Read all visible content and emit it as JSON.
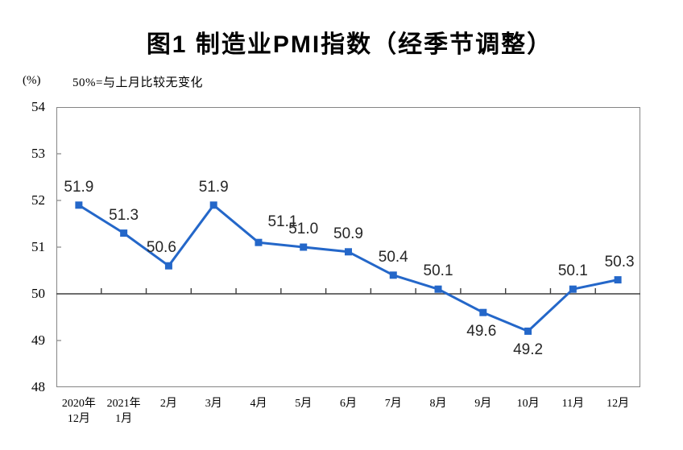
{
  "page": {
    "background": "#ffffff"
  },
  "colors": {
    "line": "#2467C9",
    "marker": "#2467C9",
    "frame": "#858585",
    "reference_line": "#3f3f3f",
    "axis_text": "#000000",
    "data_label_text": "#262626"
  },
  "chart_data": {
    "type": "line",
    "title": "图1 制造业PMI指数（经季节调整）",
    "unit_label": "(%)",
    "note": "50%=与上月比较无变化",
    "categories": [
      [
        "2020年",
        "12月"
      ],
      [
        "2021年",
        "1月"
      ],
      "2月",
      "3月",
      "4月",
      "5月",
      "6月",
      "7月",
      "8月",
      "9月",
      "10月",
      "11月",
      "12月"
    ],
    "values": [
      51.9,
      51.3,
      50.6,
      51.9,
      51.1,
      51.0,
      50.9,
      50.4,
      50.1,
      49.6,
      49.2,
      50.1,
      50.3
    ],
    "data_labels": true,
    "ylim": [
      48,
      54
    ],
    "yticks": [
      54,
      53,
      52,
      51,
      50,
      49,
      48
    ],
    "reference_line": 50,
    "marker_shape": "square",
    "grid": false,
    "legend": "none",
    "xlabel": "",
    "ylabel": "(%)"
  }
}
